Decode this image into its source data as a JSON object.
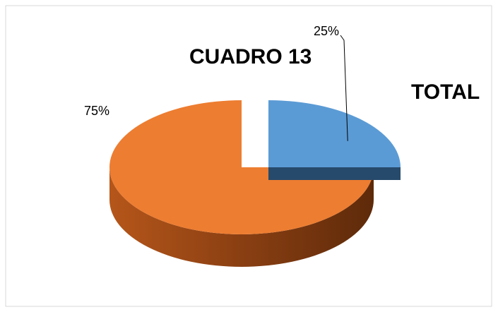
{
  "chart_data": {
    "type": "pie",
    "title": "CUADRO 13",
    "subtitle": "TOTAL",
    "values": [
      25,
      75
    ],
    "value_labels": [
      "25%",
      "75%"
    ],
    "colors": [
      "#5b9bd5",
      "#ed7d31"
    ]
  }
}
